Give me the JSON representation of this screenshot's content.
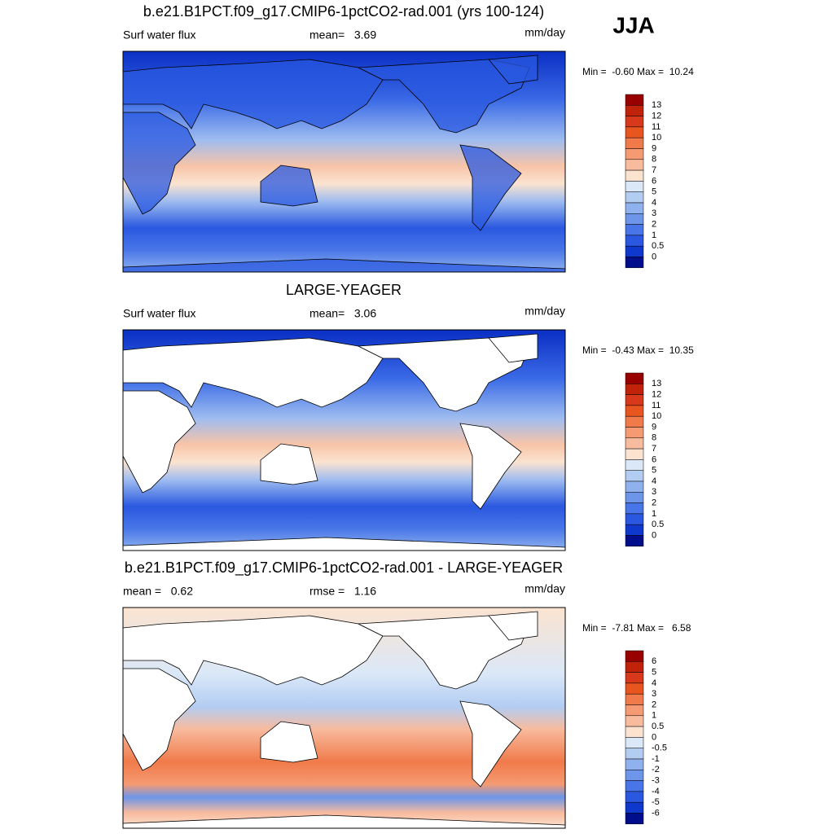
{
  "corner_label": "JJA",
  "panels": [
    {
      "title": "b.e21.B1PCT.f09_g17.CMIP6-1pctCO2-rad.001 (yrs 100-124)",
      "left_label": "Surf water flux",
      "center_label": "mean=   3.69",
      "units": "mm/day",
      "min_max": "Min =  -0.60 Max =  10.24",
      "colorbar": {
        "labels": [
          13,
          12,
          11,
          10,
          9,
          8,
          7,
          6,
          5,
          4,
          3,
          2,
          1,
          0.5,
          0
        ],
        "colors": [
          "#990000",
          "#c0220a",
          "#d7391a",
          "#e8551e",
          "#f07a4a",
          "#f59a72",
          "#f8bb9e",
          "#fbe3d0",
          "#dbe8f8",
          "#b3cdf2",
          "#8fb1ee",
          "#6d96ea",
          "#4876e8",
          "#2a58e0",
          "#0f39cc",
          "#000e8c"
        ]
      }
    },
    {
      "title": "LARGE-YEAGER",
      "left_label": "Surf water flux",
      "center_label": "mean=   3.06",
      "units": "mm/day",
      "min_max": "Min =  -0.43 Max =  10.35",
      "colorbar": {
        "labels": [
          13,
          12,
          11,
          10,
          9,
          8,
          7,
          6,
          5,
          4,
          3,
          2,
          1,
          0.5,
          0
        ],
        "colors": [
          "#990000",
          "#c0220a",
          "#d7391a",
          "#e8551e",
          "#f07a4a",
          "#f59a72",
          "#f8bb9e",
          "#fbe3d0",
          "#dbe8f8",
          "#b3cdf2",
          "#8fb1ee",
          "#6d96ea",
          "#4876e8",
          "#2a58e0",
          "#0f39cc",
          "#000e8c"
        ]
      }
    },
    {
      "title": "b.e21.B1PCT.f09_g17.CMIP6-1pctCO2-rad.001 - LARGE-YEAGER",
      "left_label": "mean =   0.62",
      "center_label": "rmse =   1.16",
      "units": "mm/day",
      "min_max": "Min =  -7.81 Max =   6.58",
      "colorbar": {
        "labels": [
          6,
          5,
          4,
          3,
          2,
          1,
          0.5,
          0,
          -0.5,
          -1,
          -2,
          -3,
          -4,
          -5,
          -6
        ],
        "colors": [
          "#990000",
          "#c0220a",
          "#d7391a",
          "#e8551e",
          "#f07a4a",
          "#f59a72",
          "#f8bb9e",
          "#fbe3d0",
          "#dbe8f8",
          "#b3cdf2",
          "#8fb1ee",
          "#6d96ea",
          "#4876e8",
          "#2a58e0",
          "#0f39cc",
          "#000e8c"
        ]
      }
    }
  ]
}
